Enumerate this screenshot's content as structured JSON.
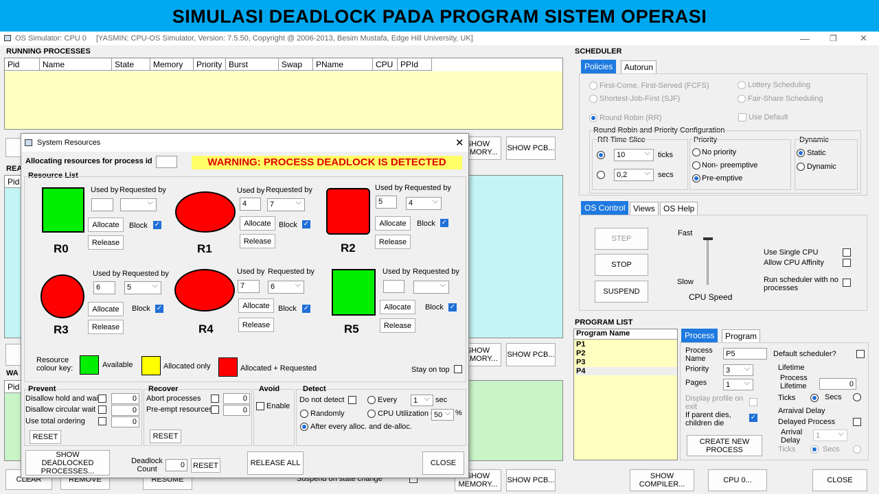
{
  "banner": "SIMULASI DEADLOCK PADA PROGRAM SISTEM OPERASI",
  "window": {
    "title": "OS Simulator: CPU 0",
    "subtitle": "[YASMIN: CPU-OS Simulator,  Version: 7.5.50,  Copyright @ 2006-2013, Besim Mustafa, Edge Hill University, UK]"
  },
  "running": {
    "title": "RUNNING PROCESSES",
    "columns": [
      "Pid",
      "Name",
      "State",
      "Memory",
      "Priority",
      "Burst",
      "Swap",
      "PName",
      "CPU",
      "PPId"
    ]
  },
  "ready": {
    "title": "REA",
    "col": "Pid"
  },
  "waiting": {
    "title": "WA",
    "col": "Pid"
  },
  "left_buttons": {
    "show_memory": "SHOW MEMORY...",
    "show_pcb": "SHOW PCB...",
    "clear": "CLEAR",
    "remove": "REMOVE",
    "resume": "RESUME",
    "suspend_on_state": "Suspend on state change"
  },
  "scheduler": {
    "title": "SCHEDULER",
    "tabs": [
      "Policies",
      "Autorun"
    ],
    "policies": [
      "First-Come, First-Served (FCFS)",
      "Shortest-Job-First (SJF)",
      "Round Robin (RR)",
      "Lottery Scheduling",
      "Fair-Share Scheduling",
      "Use Default"
    ],
    "rr_config": "Round Robin and Priority Configuration",
    "rr_time_slice": "RR Time Slice",
    "ticks_value": "10",
    "ticks": "ticks",
    "secs_value": "0,2",
    "secs": "secs",
    "priority": "Priority",
    "no_priority": "No priority",
    "non_preemptive": "Non- preemptive",
    "preemptive": "Pre-emptive",
    "dynamic": "Dynamic",
    "static": "Static",
    "dynamic_opt": "Dynamic"
  },
  "os_control": {
    "tabs": [
      "OS Control",
      "Views",
      "OS Help"
    ],
    "step": "STEP",
    "stop": "STOP",
    "suspend": "SUSPEND",
    "fast": "Fast",
    "slow": "Slow",
    "cpu_speed": "CPU Speed",
    "single_cpu": "Use Single CPU",
    "affinity": "Allow CPU Affinity",
    "run_no_proc": "Run scheduler with no processes"
  },
  "program_list": {
    "title": "PROGRAM LIST",
    "header": "Program Name",
    "items": [
      "P1",
      "P2",
      "P3",
      "P4"
    ]
  },
  "process_panel": {
    "tabs": [
      "Process",
      "Program"
    ],
    "process_name": "Process Name",
    "process_name_value": "P5",
    "priority": "Priority",
    "priority_value": "3",
    "pages": "Pages",
    "pages_value": "1",
    "display_profile": "Display profile on exit",
    "parent_dies": "If parent dies, children die",
    "default_sched": "Default scheduler?",
    "lifetime": "Lifetime",
    "process_lifetime": "Process Lifetime",
    "lifetime_value": "0",
    "ticks": "Ticks",
    "secs": "Secs",
    "arrival_delay": "Arraival Delay",
    "delayed_process": "Delayed Process",
    "arrival_delay_lbl": "Arrival Delay",
    "arrival_value": "1",
    "create": "CREATE NEW PROCESS"
  },
  "bottom": {
    "show_compiler": "SHOW COMPILER...",
    "cpu0": "CPU 0...",
    "close": "CLOSE"
  },
  "dialog": {
    "title": "System Resources",
    "alloc_for": "Allocating resources for process id",
    "warning": "WARNING: PROCESS DEADLOCK IS DETECTED",
    "resource_list": "Resource List",
    "used_by": "Used by",
    "requested_by": "Requested by",
    "allocate": "Allocate",
    "release": "Release",
    "block": "Block",
    "resources": [
      {
        "name": "R0",
        "used": "",
        "req": "",
        "color": "#00ee00"
      },
      {
        "name": "R1",
        "used": "4",
        "req": "7",
        "color": "#ff0000"
      },
      {
        "name": "R2",
        "used": "5",
        "req": "4",
        "color": "#ff0000"
      },
      {
        "name": "R3",
        "used": "6",
        "req": "5",
        "color": "#ff0000"
      },
      {
        "name": "R4",
        "used": "7",
        "req": "6",
        "color": "#ff0000"
      },
      {
        "name": "R5",
        "used": "",
        "req": "",
        "color": "#00ee00"
      }
    ],
    "key": "Resource colour key:",
    "available": "Available",
    "allocated_only": "Allocated only",
    "alloc_req": "Allocated + Requested",
    "stay_on_top": "Stay on top",
    "prevent": "Prevent",
    "hold_wait": "Disallow hold and wait",
    "circ_wait": "Disallow circular wait",
    "total_order": "Use total ordering",
    "recover": "Recover",
    "abort": "Abort processes",
    "preempt": "Pre-empt resources",
    "avoid": "Avoid",
    "enable": "Enable",
    "detect": "Detect",
    "do_not_detect": "Do not detect",
    "every": "Every",
    "every_value": "1",
    "sec": "sec",
    "randomly": "Randomly",
    "cpu_util": "CPU Utilization <",
    "cpu_util_value": "50",
    "pct": "%",
    "after_every": "After every alloc. and de-alloc.",
    "reset": "RESET",
    "zero": "0",
    "show_deadlocked": "SHOW DEADLOCKED PROCESSES...",
    "deadlock_count": "Deadlock Count",
    "release_all": "RELEASE ALL",
    "close": "CLOSE"
  }
}
